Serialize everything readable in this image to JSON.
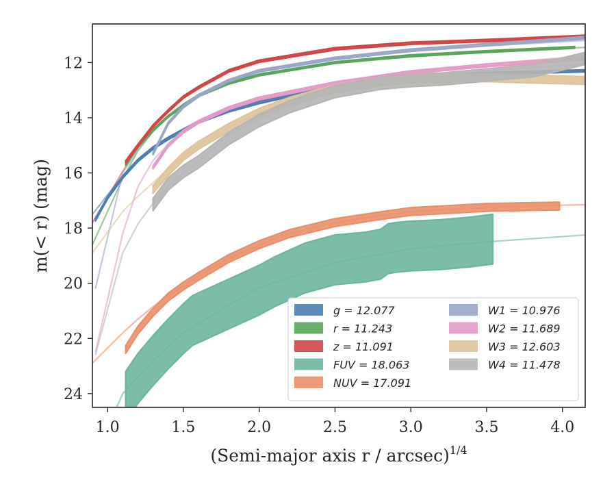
{
  "chart_data": {
    "type": "line",
    "xlabel": "(Semi-major axis r / arcsec)",
    "xlabel_exponent": "1/4",
    "ylabel": "m(< r) (mag)",
    "xlim": [
      0.9,
      4.15
    ],
    "ylim": [
      24.5,
      10.6
    ],
    "y_inverted": true,
    "grid": false,
    "legend_position": "lower-right",
    "x_ticks": [
      "1.0",
      "1.5",
      "2.0",
      "2.5",
      "3.0",
      "3.5",
      "4.0"
    ],
    "y_ticks": [
      "12",
      "14",
      "16",
      "18",
      "20",
      "22",
      "24"
    ],
    "series": [
      {
        "key": "g",
        "name": "g = 12.077",
        "color": "#4c7fb0",
        "model": {
          "x": [
            0.9,
            1.1,
            1.2,
            1.3,
            1.4,
            1.5,
            1.6,
            1.8,
            2.0,
            2.2,
            2.5,
            2.8,
            3.0,
            3.5,
            4.15
          ],
          "y": [
            17.5,
            16.1,
            15.5,
            15.05,
            14.7,
            14.4,
            14.15,
            13.75,
            13.45,
            13.2,
            12.85,
            12.62,
            12.52,
            12.38,
            12.3
          ]
        },
        "data": {
          "x": [
            0.92,
            1.0,
            1.1,
            1.2,
            1.3,
            1.4,
            1.5,
            1.6,
            1.8,
            2.0,
            2.2,
            2.5,
            2.8,
            3.0,
            3.3,
            3.5,
            3.8,
            4.15
          ],
          "y": [
            17.7,
            16.9,
            16.15,
            15.55,
            15.1,
            14.75,
            14.45,
            14.15,
            13.75,
            13.45,
            13.2,
            12.85,
            12.62,
            12.55,
            12.45,
            12.4,
            12.35,
            12.3
          ],
          "band": 0.04
        }
      },
      {
        "key": "r",
        "name": "r = 11.243",
        "color": "#5aa55a",
        "model": {
          "x": [
            0.9,
            1.1,
            1.2,
            1.3,
            1.4,
            1.5,
            1.6,
            1.8,
            2.0,
            2.5,
            3.0,
            3.5,
            4.15
          ],
          "y": [
            18.6,
            16.2,
            15.2,
            14.5,
            13.95,
            13.55,
            13.2,
            12.75,
            12.45,
            12.0,
            11.8,
            11.6,
            11.45
          ]
        },
        "data": {
          "x": [
            1.12,
            1.2,
            1.3,
            1.4,
            1.5,
            1.6,
            1.8,
            2.0,
            2.5,
            3.0,
            3.5,
            4.08
          ],
          "y": [
            15.7,
            15.05,
            14.45,
            13.95,
            13.55,
            13.2,
            12.75,
            12.45,
            12.0,
            11.75,
            11.6,
            11.45
          ],
          "band": 0.03
        }
      },
      {
        "key": "z",
        "name": "z = 11.091",
        "color": "#d14545",
        "model": {
          "x": [
            0.9,
            1.1,
            1.2,
            1.3,
            1.4,
            1.5,
            1.6,
            1.8,
            2.0,
            2.5,
            3.0,
            3.5,
            4.15
          ],
          "y": [
            17.8,
            15.95,
            15.05,
            14.3,
            13.75,
            13.25,
            12.9,
            12.3,
            11.95,
            11.5,
            11.3,
            11.2,
            11.05
          ]
        },
        "data": {
          "x": [
            1.12,
            1.2,
            1.3,
            1.4,
            1.5,
            1.6,
            1.8,
            2.0,
            2.5,
            3.0,
            3.5,
            4.15
          ],
          "y": [
            15.6,
            15.0,
            14.3,
            13.75,
            13.25,
            12.9,
            12.3,
            11.95,
            11.5,
            11.3,
            11.2,
            11.05
          ],
          "band": 0.04
        }
      },
      {
        "key": "FUV",
        "name": "FUV = 18.063",
        "color": "#6db6a0",
        "model": {
          "x": [
            0.9,
            1.1,
            1.3,
            1.5,
            1.8,
            2.0,
            2.5,
            3.0,
            3.5,
            4.15
          ],
          "y": [
            26.5,
            24.0,
            22.8,
            21.8,
            20.8,
            20.15,
            19.25,
            18.75,
            18.5,
            18.25
          ]
        },
        "data": {
          "x": [
            1.12,
            1.2,
            1.3,
            1.4,
            1.5,
            1.56,
            1.7,
            1.8,
            2.0,
            2.1,
            2.2,
            2.3,
            2.4,
            2.5,
            2.6,
            2.7,
            2.8,
            2.85,
            2.9,
            3.0,
            3.2,
            3.4,
            3.54
          ],
          "y": [
            24.1,
            23.45,
            22.8,
            22.2,
            21.65,
            21.35,
            21.0,
            20.75,
            20.25,
            19.95,
            19.7,
            19.45,
            19.3,
            19.15,
            19.1,
            19.05,
            18.95,
            18.75,
            18.7,
            18.65,
            18.6,
            18.5,
            18.4
          ],
          "band": 0.9
        }
      },
      {
        "key": "NUV",
        "name": "NUV = 17.091",
        "color": "#e9906a",
        "model": {
          "x": [
            0.9,
            1.1,
            1.2,
            1.3,
            1.4,
            1.5,
            1.6,
            1.8,
            2.0,
            2.2,
            2.5,
            2.8,
            3.0,
            3.5,
            4.15
          ],
          "y": [
            22.9,
            21.8,
            21.3,
            20.85,
            20.45,
            20.1,
            19.75,
            19.1,
            18.6,
            18.2,
            17.8,
            17.55,
            17.4,
            17.25,
            17.15
          ]
        },
        "data": {
          "x": [
            1.12,
            1.2,
            1.3,
            1.4,
            1.5,
            1.6,
            1.8,
            2.0,
            2.2,
            2.5,
            2.8,
            3.0,
            3.5,
            3.98
          ],
          "y": [
            22.4,
            21.7,
            21.05,
            20.5,
            20.1,
            19.75,
            19.1,
            18.6,
            18.2,
            17.8,
            17.55,
            17.4,
            17.25,
            17.2
          ],
          "band": 0.14
        }
      },
      {
        "key": "W1",
        "name": "W1 = 10.976",
        "color": "#98a6c8",
        "model": {
          "x": [
            0.92,
            1.1,
            1.2,
            1.3,
            1.4,
            1.5,
            1.6,
            1.8,
            2.0,
            2.5,
            3.0,
            3.5,
            4.15
          ],
          "y": [
            20.2,
            16.0,
            15.15,
            14.5,
            13.95,
            13.5,
            13.15,
            12.65,
            12.3,
            11.85,
            11.6,
            11.4,
            11.2
          ]
        },
        "data": {
          "x": [
            1.3,
            1.4,
            1.5,
            1.6,
            1.8,
            2.0,
            2.5,
            3.0,
            3.5,
            4.15
          ],
          "y": [
            15.3,
            14.2,
            13.6,
            13.2,
            12.65,
            12.3,
            11.85,
            11.55,
            11.35,
            11.1
          ],
          "band": 0.04
        }
      },
      {
        "key": "W2",
        "name": "W2 = 11.689",
        "color": "#e39bc7",
        "model": {
          "x": [
            0.92,
            1.1,
            1.2,
            1.3,
            1.4,
            1.5,
            1.6,
            1.8,
            2.0,
            2.5,
            3.0,
            3.5,
            4.15
          ],
          "y": [
            22.5,
            18.2,
            16.5,
            15.55,
            14.95,
            14.5,
            14.15,
            13.65,
            13.3,
            12.75,
            12.35,
            12.1,
            11.85
          ]
        },
        "data": {
          "x": [
            1.3,
            1.4,
            1.5,
            1.6,
            1.8,
            2.0,
            2.5,
            3.0,
            3.5,
            4.15
          ],
          "y": [
            15.8,
            15.0,
            14.5,
            14.15,
            13.65,
            13.3,
            12.75,
            12.35,
            12.1,
            11.85
          ],
          "band": 0.05
        }
      },
      {
        "key": "W3",
        "name": "W3 = 12.603",
        "color": "#dfc39b",
        "model": {
          "x": [
            0.9,
            1.1,
            1.2,
            1.3,
            1.4,
            1.5,
            1.6,
            1.8,
            2.0,
            2.5,
            3.0,
            3.5,
            4.15
          ],
          "y": [
            18.9,
            17.4,
            16.85,
            16.35,
            15.85,
            15.4,
            15.0,
            14.35,
            13.8,
            12.95,
            12.4,
            12.05,
            11.75
          ]
        },
        "data": {
          "x": [
            1.3,
            1.4,
            1.5,
            1.6,
            1.8,
            2.0,
            2.2,
            2.5,
            2.8,
            3.0,
            3.2,
            3.5,
            3.8,
            4.15
          ],
          "y": [
            16.6,
            15.95,
            15.4,
            15.0,
            14.35,
            13.8,
            13.4,
            12.95,
            12.7,
            12.6,
            12.58,
            12.55,
            12.6,
            12.65
          ],
          "band": 0.14
        }
      },
      {
        "key": "W4",
        "name": "W4 = 11.478",
        "color": "#b5b5b5",
        "model": {
          "x": [
            0.92,
            1.1,
            1.2,
            1.3,
            1.4,
            1.5,
            1.6,
            1.8,
            2.0,
            2.5,
            3.0,
            3.5,
            4.15
          ],
          "y": [
            22.6,
            18.9,
            17.85,
            17.1,
            16.5,
            16.0,
            15.6,
            14.6,
            14.05,
            13.0,
            12.55,
            12.3,
            12.05
          ]
        },
        "data": {
          "x": [
            1.3,
            1.4,
            1.5,
            1.6,
            1.8,
            2.0,
            2.2,
            2.5,
            2.8,
            3.0,
            3.2,
            3.5,
            3.8,
            4.0,
            4.15
          ],
          "y": [
            17.15,
            16.4,
            15.95,
            15.6,
            14.75,
            14.1,
            13.6,
            13.05,
            12.75,
            12.65,
            12.6,
            12.45,
            12.3,
            12.05,
            11.85
          ],
          "band": 0.22
        }
      }
    ]
  }
}
